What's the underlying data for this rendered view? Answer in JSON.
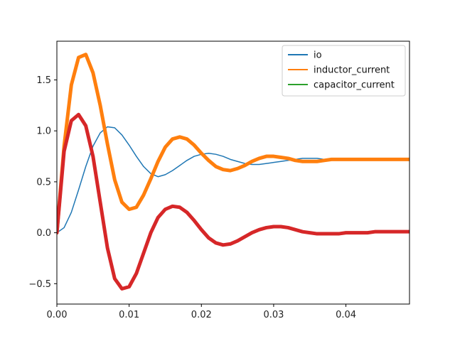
{
  "chart_data": {
    "type": "line",
    "title": "",
    "xlabel": "",
    "ylabel": "",
    "xlim": [
      0.0,
      0.0488
    ],
    "ylim": [
      -0.7,
      1.88
    ],
    "grid": false,
    "legend_placement": "top-right",
    "x_ticks": [
      {
        "value": 0.0,
        "label": "0.00"
      },
      {
        "value": 0.01,
        "label": "0.01"
      },
      {
        "value": 0.02,
        "label": "0.02"
      },
      {
        "value": 0.03,
        "label": "0.03"
      },
      {
        "value": 0.04,
        "label": "0.04"
      }
    ],
    "y_ticks": [
      {
        "value": -0.5,
        "label": "−0.5"
      },
      {
        "value": 0.0,
        "label": "0.0"
      },
      {
        "value": 0.5,
        "label": "0.5"
      },
      {
        "value": 1.0,
        "label": "1.0"
      },
      {
        "value": 1.5,
        "label": "1.5"
      }
    ],
    "series": [
      {
        "name": "io",
        "color": "#1f77b4",
        "thick": false,
        "in_legend": true,
        "x": [
          0.0,
          0.001,
          0.002,
          0.003,
          0.004,
          0.005,
          0.006,
          0.007,
          0.008,
          0.009,
          0.01,
          0.011,
          0.012,
          0.013,
          0.014,
          0.015,
          0.016,
          0.017,
          0.018,
          0.019,
          0.02,
          0.021,
          0.022,
          0.023,
          0.024,
          0.025,
          0.026,
          0.027,
          0.028,
          0.029,
          0.03,
          0.031,
          0.032,
          0.033,
          0.034,
          0.035,
          0.036,
          0.037,
          0.038,
          0.039,
          0.04,
          0.041,
          0.042,
          0.043,
          0.044,
          0.045,
          0.046,
          0.047,
          0.048,
          0.0488
        ],
        "y": [
          0.0,
          0.05,
          0.2,
          0.42,
          0.65,
          0.85,
          0.98,
          1.04,
          1.03,
          0.96,
          0.86,
          0.75,
          0.65,
          0.58,
          0.55,
          0.57,
          0.61,
          0.66,
          0.71,
          0.75,
          0.77,
          0.78,
          0.77,
          0.75,
          0.72,
          0.7,
          0.68,
          0.67,
          0.67,
          0.68,
          0.69,
          0.7,
          0.71,
          0.72,
          0.73,
          0.73,
          0.73,
          0.72,
          0.72,
          0.72,
          0.72,
          0.72,
          0.72,
          0.72,
          0.72,
          0.72,
          0.72,
          0.72,
          0.72,
          0.72
        ]
      },
      {
        "name": "inductor_current",
        "color": "#ff7f0e",
        "thick": true,
        "in_legend": true,
        "x": [
          0.0,
          0.001,
          0.002,
          0.003,
          0.004,
          0.005,
          0.006,
          0.007,
          0.008,
          0.009,
          0.01,
          0.011,
          0.012,
          0.013,
          0.014,
          0.015,
          0.016,
          0.017,
          0.018,
          0.019,
          0.02,
          0.021,
          0.022,
          0.023,
          0.024,
          0.025,
          0.026,
          0.027,
          0.028,
          0.029,
          0.03,
          0.031,
          0.032,
          0.033,
          0.034,
          0.035,
          0.036,
          0.037,
          0.038,
          0.039,
          0.04,
          0.041,
          0.042,
          0.043,
          0.044,
          0.045,
          0.046,
          0.047,
          0.048,
          0.0488
        ],
        "y": [
          0.0,
          0.85,
          1.45,
          1.72,
          1.75,
          1.57,
          1.25,
          0.87,
          0.52,
          0.3,
          0.23,
          0.25,
          0.37,
          0.53,
          0.7,
          0.84,
          0.92,
          0.94,
          0.92,
          0.86,
          0.78,
          0.71,
          0.65,
          0.62,
          0.61,
          0.63,
          0.66,
          0.7,
          0.73,
          0.75,
          0.75,
          0.74,
          0.73,
          0.71,
          0.7,
          0.7,
          0.7,
          0.71,
          0.72,
          0.72,
          0.72,
          0.72,
          0.72,
          0.72,
          0.72,
          0.72,
          0.72,
          0.72,
          0.72,
          0.72
        ]
      },
      {
        "name": "capacitor_current",
        "color": "#2ca02c",
        "thick": false,
        "in_legend": true,
        "x": [],
        "y": []
      },
      {
        "name": "",
        "color": "#d62728",
        "thick": true,
        "in_legend": false,
        "x": [
          0.0,
          0.001,
          0.002,
          0.003,
          0.004,
          0.005,
          0.006,
          0.007,
          0.008,
          0.009,
          0.01,
          0.011,
          0.012,
          0.013,
          0.014,
          0.015,
          0.016,
          0.017,
          0.018,
          0.019,
          0.02,
          0.021,
          0.022,
          0.023,
          0.024,
          0.025,
          0.026,
          0.027,
          0.028,
          0.029,
          0.03,
          0.031,
          0.032,
          0.033,
          0.034,
          0.035,
          0.036,
          0.037,
          0.038,
          0.039,
          0.04,
          0.041,
          0.042,
          0.043,
          0.044,
          0.045,
          0.046,
          0.047,
          0.048,
          0.0488
        ],
        "y": [
          0.0,
          0.8,
          1.1,
          1.16,
          1.05,
          0.75,
          0.3,
          -0.15,
          -0.45,
          -0.55,
          -0.53,
          -0.4,
          -0.2,
          0.0,
          0.15,
          0.23,
          0.26,
          0.25,
          0.2,
          0.12,
          0.03,
          -0.05,
          -0.1,
          -0.12,
          -0.11,
          -0.08,
          -0.04,
          0.0,
          0.03,
          0.05,
          0.06,
          0.06,
          0.05,
          0.03,
          0.01,
          0.0,
          -0.01,
          -0.01,
          -0.01,
          -0.01,
          0.0,
          0.0,
          0.0,
          0.0,
          0.01,
          0.01,
          0.01,
          0.01,
          0.01,
          0.01
        ]
      }
    ]
  }
}
